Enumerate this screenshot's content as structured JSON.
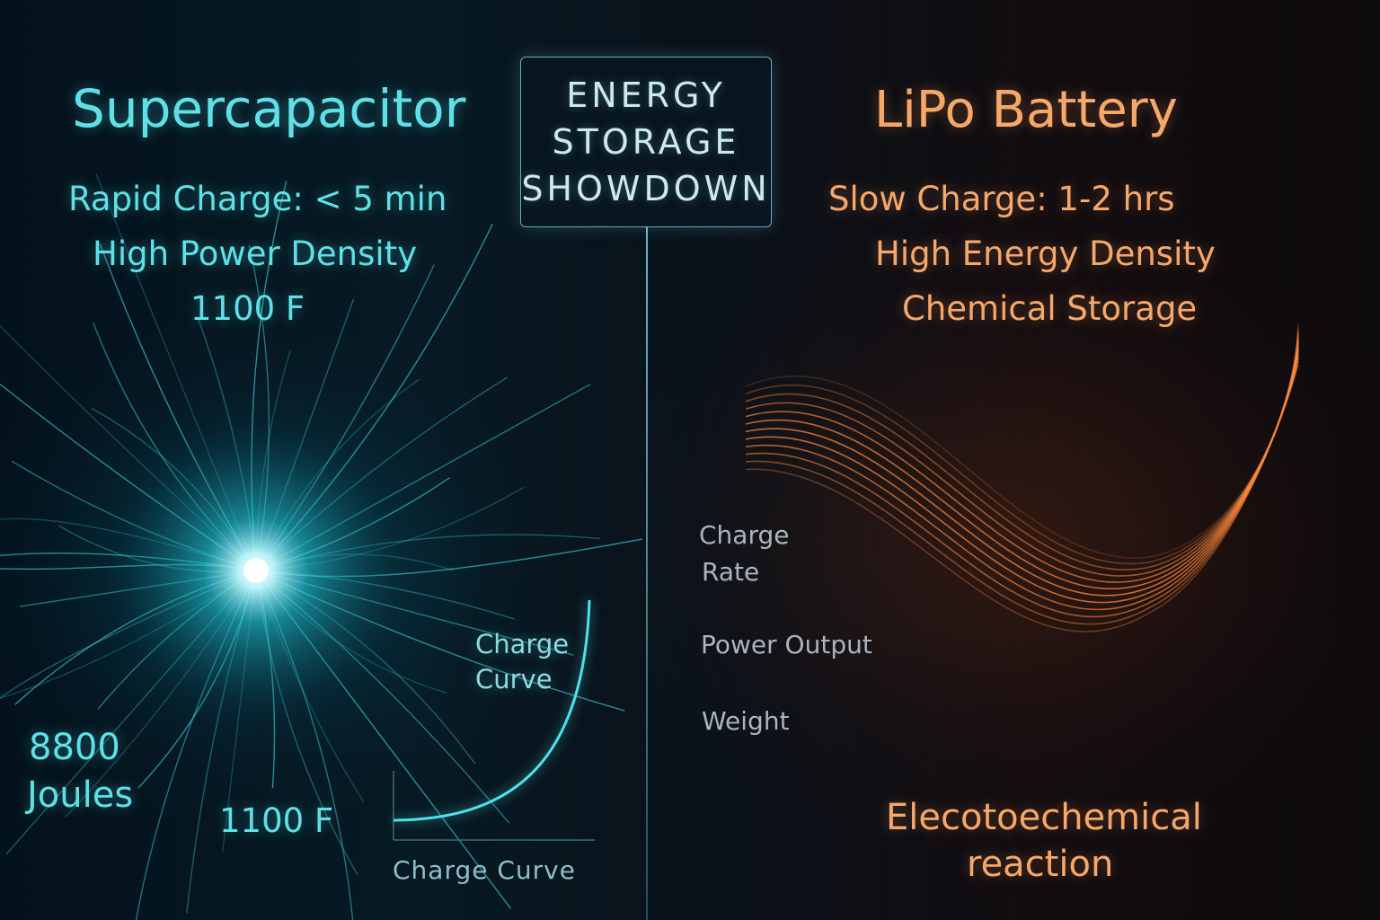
{
  "title": {
    "line1": "ENERGY",
    "line2": "STORAGE",
    "line3": "SHOWDOWN"
  },
  "supercapacitor": {
    "heading": "Supercapacitor",
    "charge_time": "Rapid Charge: < 5 min",
    "density": "High Power Density",
    "capacitance_top": "1100 F",
    "energy_value": "8800",
    "energy_unit": "Joules",
    "capacitance_bottom": "1100 F",
    "curve_label_line1": "Charge",
    "curve_label_line2": "Curve",
    "curve_axis_label": "Charge Curve",
    "accent_color": "#5fe0e6"
  },
  "lipo": {
    "heading": "LiPo Battery",
    "charge_time": "Slow Charge:  1-2 hrs",
    "density": "High Energy Density",
    "storage": "Chemical Storage",
    "reaction_line1": "Elecotoechemical",
    "reaction_line2": "reaction",
    "accent_color": "#f5a86a"
  },
  "metrics": {
    "charge_rate_line1": "Charge",
    "charge_rate_line2": "Rate",
    "power_output": "Power Output",
    "weight": "Weight"
  }
}
